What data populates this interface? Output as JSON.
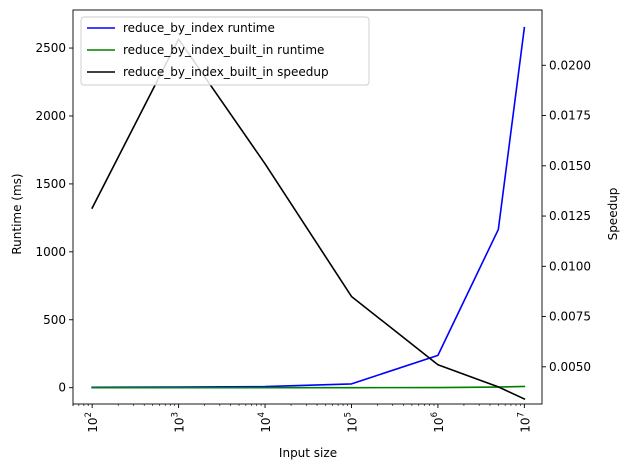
{
  "chart_data": {
    "type": "line",
    "title": "",
    "xlabel": "Input size",
    "ylabel": "Runtime (ms)",
    "y2label": "Speedup",
    "xscale": "log",
    "x": [
      100,
      1000,
      10000,
      100000,
      1000000,
      5000000,
      10000000
    ],
    "xlim": [
      60,
      16000000
    ],
    "ylim": [
      -120,
      2780
    ],
    "y2lim": [
      0.00315,
      0.02275
    ],
    "x_ticks": [
      {
        "value": 100,
        "base": "10",
        "exp": "2"
      },
      {
        "value": 1000,
        "base": "10",
        "exp": "3"
      },
      {
        "value": 10000,
        "base": "10",
        "exp": "4"
      },
      {
        "value": 100000,
        "base": "10",
        "exp": "5"
      },
      {
        "value": 1000000,
        "base": "10",
        "exp": "6"
      },
      {
        "value": 10000000,
        "base": "10",
        "exp": "7"
      }
    ],
    "y_ticks": [
      0,
      500,
      1000,
      1500,
      2000,
      2500
    ],
    "y2_ticks": [
      "0.0050",
      "0.0075",
      "0.0100",
      "0.0125",
      "0.0150",
      "0.0175",
      "0.0200"
    ],
    "grid": false,
    "legend_position": "top-left",
    "series": [
      {
        "name": "reduce_by_index runtime",
        "axis": "left",
        "color": "#0000ff",
        "values": [
          3,
          5,
          8,
          28,
          238,
          1165,
          2650
        ]
      },
      {
        "name": "reduce_by_index_built_in runtime",
        "axis": "left",
        "color": "#008000",
        "values": [
          0.04,
          0.1,
          0.2,
          0.3,
          1.2,
          4.5,
          9
        ]
      },
      {
        "name": "reduce_by_index_built_in speedup",
        "axis": "right",
        "color": "#000000",
        "values": [
          0.0129,
          0.0213,
          0.0151,
          0.0085,
          0.0051,
          0.004,
          0.0034
        ]
      }
    ]
  }
}
